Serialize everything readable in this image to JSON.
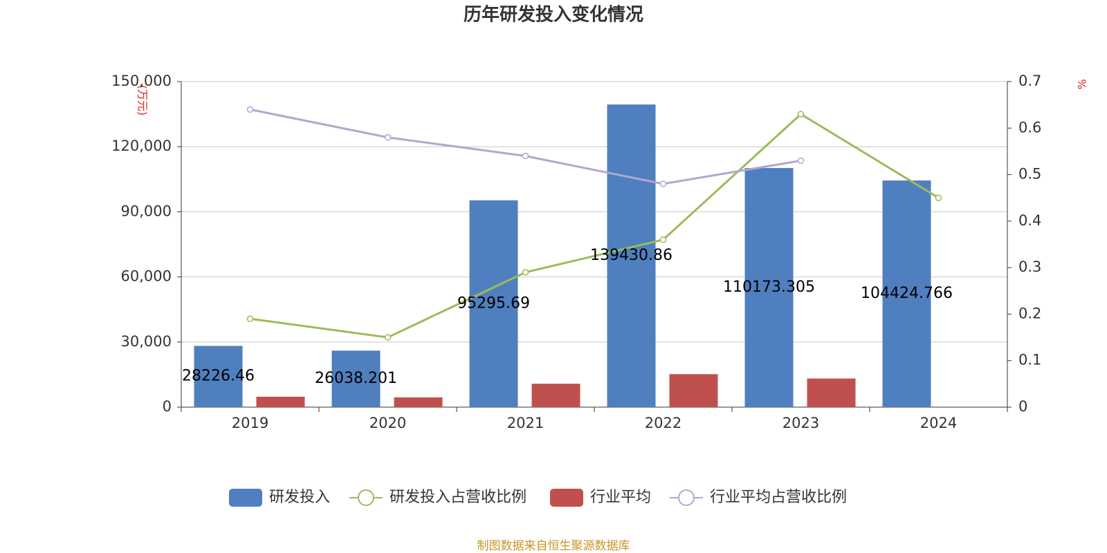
{
  "chart_data": {
    "type": "bar-line",
    "title": "历年研发投入变化情况",
    "y_label": "(万元)",
    "y2_label": "%",
    "source": "制图数据来自恒生聚源数据库",
    "categories": [
      "2019",
      "2020",
      "2021",
      "2022",
      "2023",
      "2024"
    ],
    "series": [
      {
        "name": "研发投入",
        "type": "bar",
        "color": "#4f7fbf",
        "values": [
          28226.46,
          26038.201,
          95295.69,
          139430.86,
          110173.305,
          104424.766
        ]
      },
      {
        "name": "研发投入占营收比例",
        "type": "line",
        "axis": "y2",
        "color": "#9bbb59",
        "values": [
          0.19,
          0.15,
          0.29,
          0.36,
          0.63,
          0.45
        ]
      },
      {
        "name": "行业平均",
        "type": "bar",
        "color": "#c0504d",
        "values": [
          4800,
          4500,
          10800,
          15200,
          13200,
          null
        ]
      },
      {
        "name": "行业平均占营收比例",
        "type": "line",
        "axis": "y2",
        "color": "#b3a6cf",
        "values": [
          0.64,
          0.58,
          0.54,
          0.48,
          0.53,
          null
        ]
      }
    ],
    "ylim": [
      0,
      150000
    ],
    "yticks": [
      0,
      {
        "value": 30000,
        "label": "30,000"
      },
      {
        "value": 60000,
        "label": "60,000"
      },
      {
        "value": 90000,
        "label": "90,000"
      },
      {
        "value": 120000,
        "label": "120,000"
      },
      {
        "value": 150000,
        "label": "150,000"
      }
    ],
    "y2lim": [
      0,
      0.7
    ],
    "y2ticks": [
      0,
      0.1,
      0.2,
      0.3,
      0.4,
      0.5,
      0.6,
      0.7
    ],
    "grid": true
  }
}
